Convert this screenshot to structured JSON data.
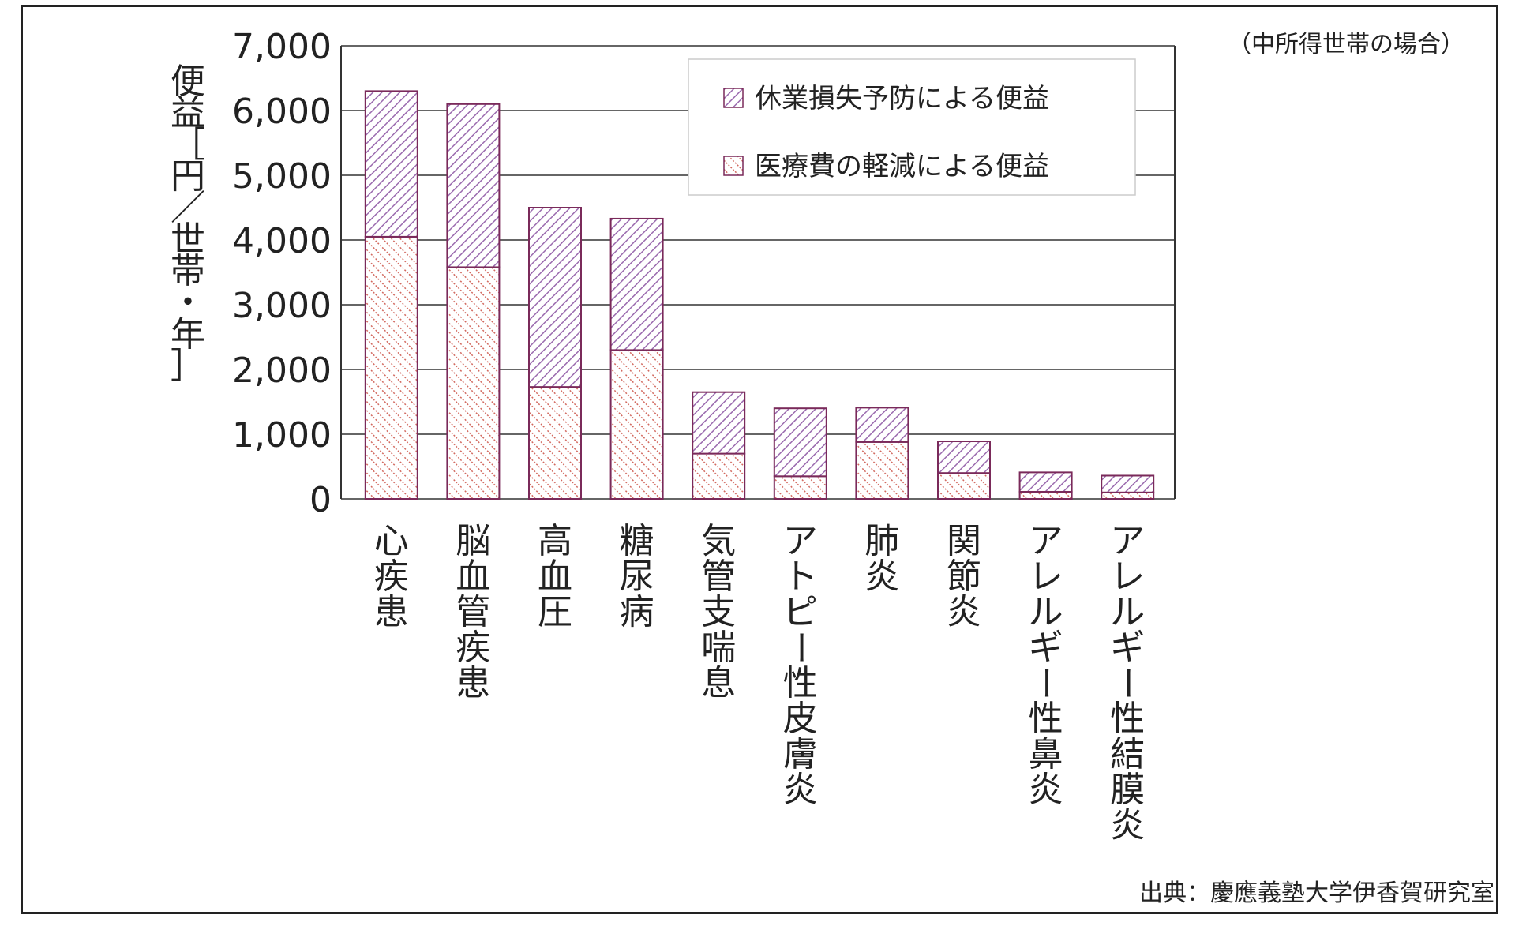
{
  "chart_data": {
    "type": "bar",
    "stacked": true,
    "categories": [
      "心疾患",
      "脳血管疾患",
      "高血圧",
      "糖尿病",
      "気管支喘息",
      "アトピー性皮膚炎",
      "肺炎",
      "関節炎",
      "アレルギー性鼻炎",
      "アレルギー性結膜炎"
    ],
    "series": [
      {
        "name": "医療費の軽減による便益",
        "values": [
          4050,
          3580,
          1730,
          2300,
          700,
          350,
          880,
          400,
          110,
          100
        ],
        "color": "#c0504d"
      },
      {
        "name": "休業損失予防による便益",
        "values": [
          2250,
          2520,
          2770,
          2030,
          950,
          1050,
          530,
          490,
          300,
          260
        ],
        "color": "#8b5a9b"
      }
    ],
    "ylabel": "便益［円／世帯・年］",
    "ylim": [
      0,
      7000
    ],
    "yticks": [
      "0",
      "1,000",
      "2,000",
      "3,000",
      "4,000",
      "5,000",
      "6,000",
      "7,000"
    ],
    "grid": true,
    "legend_position": "top-right",
    "note": "（中所得世帯の場合）",
    "source": "出典：慶應義塾大学伊香賀研究室"
  },
  "colors": {
    "bar_outline": "#7a2a5a",
    "lower_hatch": "#d2695f",
    "upper_hatch": "#9a6aae",
    "grid": "#333333"
  }
}
